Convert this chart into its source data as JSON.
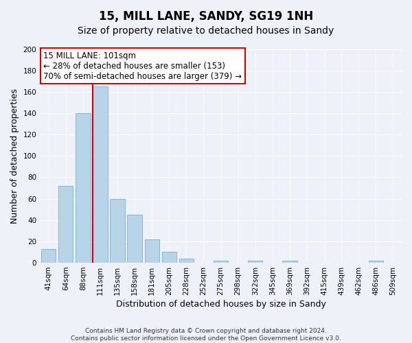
{
  "title": "15, MILL LANE, SANDY, SG19 1NH",
  "subtitle": "Size of property relative to detached houses in Sandy",
  "xlabel": "Distribution of detached houses by size in Sandy",
  "ylabel": "Number of detached properties",
  "categories": [
    "41sqm",
    "64sqm",
    "88sqm",
    "111sqm",
    "135sqm",
    "158sqm",
    "181sqm",
    "205sqm",
    "228sqm",
    "252sqm",
    "275sqm",
    "298sqm",
    "322sqm",
    "345sqm",
    "369sqm",
    "392sqm",
    "415sqm",
    "439sqm",
    "462sqm",
    "486sqm",
    "509sqm"
  ],
  "values": [
    13,
    72,
    140,
    165,
    60,
    45,
    22,
    10,
    4,
    0,
    2,
    0,
    2,
    0,
    2,
    0,
    0,
    0,
    0,
    2,
    0
  ],
  "bar_color": "#b8d4e8",
  "bar_edge_color": "#8ab4d0",
  "vline_color": "#cc0000",
  "vline_x_index": 3,
  "annotation_line1": "15 MILL LANE: 101sqm",
  "annotation_line2": "← 28% of detached houses are smaller (153)",
  "annotation_line3": "70% of semi-detached houses are larger (379) →",
  "annotation_box_color": "#ffffff",
  "annotation_box_edge": "#cc0000",
  "ylim": [
    0,
    200
  ],
  "yticks": [
    0,
    20,
    40,
    60,
    80,
    100,
    120,
    140,
    160,
    180,
    200
  ],
  "background_color": "#eef2f8",
  "grid_color": "#ffffff",
  "footnote": "Contains HM Land Registry data © Crown copyright and database right 2024.\nContains public sector information licensed under the Open Government Licence v3.0.",
  "title_fontsize": 12,
  "subtitle_fontsize": 10,
  "xlabel_fontsize": 9,
  "ylabel_fontsize": 9,
  "tick_fontsize": 7.5,
  "annotation_fontsize": 8.5,
  "footnote_fontsize": 6.5
}
